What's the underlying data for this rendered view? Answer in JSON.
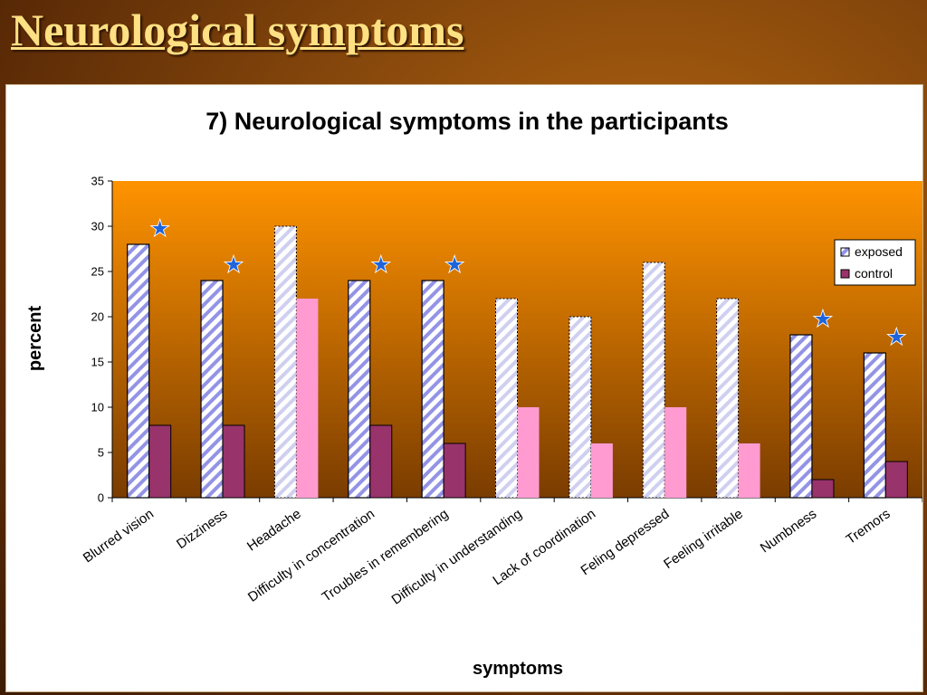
{
  "slide": {
    "title": "Neurological symptoms"
  },
  "colors": {
    "plot_top": "#ff9300",
    "plot_bottom": "#7a3c00",
    "exposed_stripe": "#9393e6",
    "exposed_light_stripe": "#cfcff0",
    "control": "#99336b",
    "control_light": "#ff9bd0",
    "star": "#1e64dc"
  },
  "chart_data": {
    "type": "bar",
    "title": "7) Neurological symptoms in the participants",
    "xlabel": "symptoms",
    "ylabel": "percent",
    "ylim": [
      0,
      35
    ],
    "yticks": [
      0,
      5,
      10,
      15,
      20,
      25,
      30,
      35
    ],
    "categories": [
      "Blurred vision",
      "Dizziness",
      "Headache",
      "Difficulty in concentration",
      "Troubles in remembering",
      "Difficulty in understanding",
      "Lack of coordination",
      "Feling depressed",
      "Feeling irritable",
      "Numbness",
      "Tremors"
    ],
    "series": [
      {
        "name": "exposed",
        "values": [
          28,
          24,
          30,
          24,
          24,
          22,
          20,
          26,
          22,
          18,
          16
        ]
      },
      {
        "name": "control",
        "values": [
          8,
          8,
          22,
          8,
          6,
          10,
          6,
          10,
          6,
          2,
          4
        ]
      }
    ],
    "significant": [
      true,
      true,
      false,
      true,
      true,
      false,
      false,
      false,
      false,
      true,
      true
    ],
    "annotation_marker": "★",
    "grid": false,
    "legend_position": "right"
  }
}
